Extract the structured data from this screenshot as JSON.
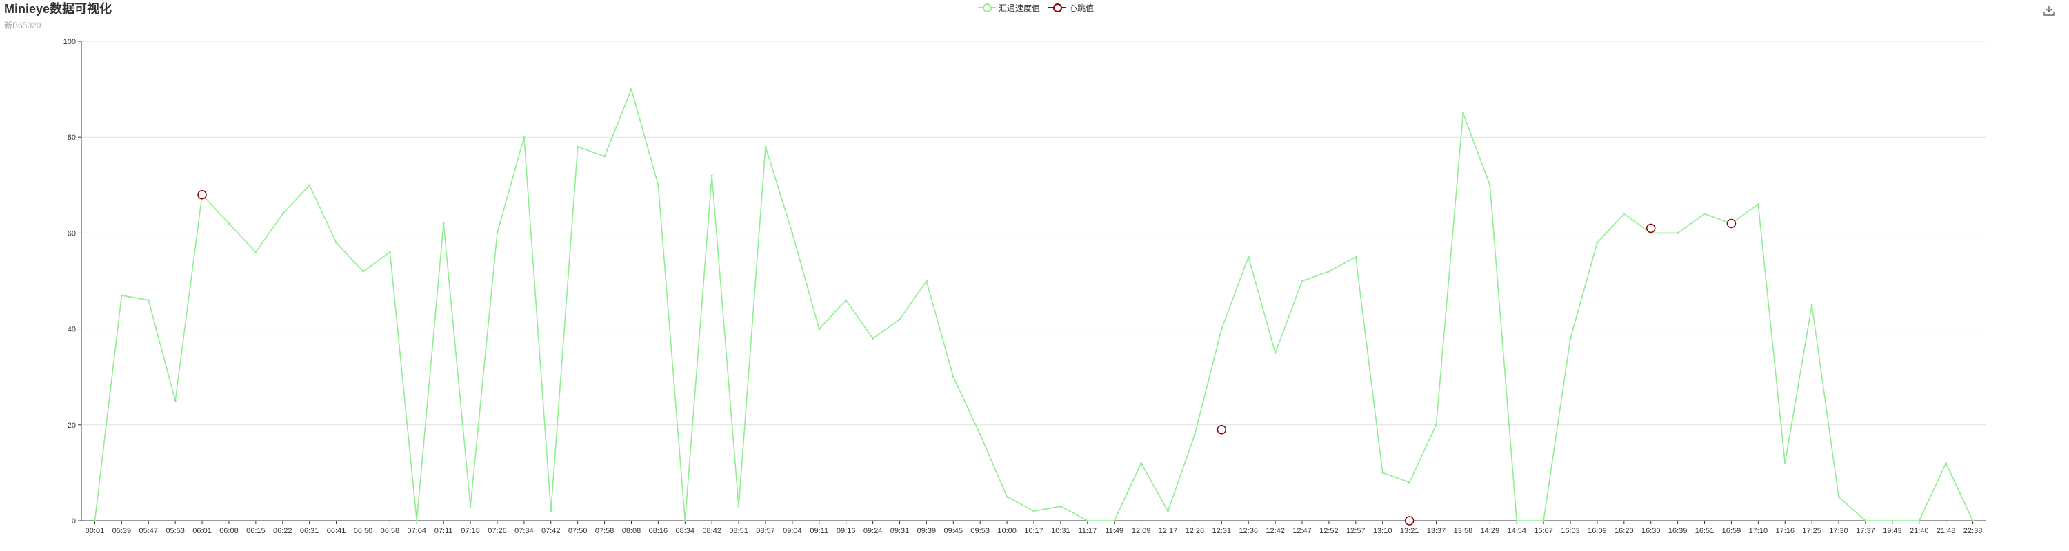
{
  "title": "Minieye数据可视化",
  "subtitle": "新B65020",
  "legend": {
    "items": [
      {
        "name": "汇通速度值",
        "color": "#90ee90",
        "icon": "circle-outline"
      },
      {
        "name": "心跳值",
        "color": "#8b0000",
        "icon": "circle-outline"
      }
    ],
    "placement": "top-center"
  },
  "toolbox": {
    "icon": "save-as-image-icon"
  },
  "chart_data": {
    "type": "line",
    "x": [
      "00:01",
      "05:39",
      "05:47",
      "05:53",
      "06:01",
      "06:08",
      "06:15",
      "06:22",
      "06:31",
      "06:41",
      "06:50",
      "06:58",
      "07:04",
      "07:11",
      "07:18",
      "07:26",
      "07:34",
      "07:42",
      "07:50",
      "07:58",
      "08:08",
      "08:16",
      "08:34",
      "08:42",
      "08:51",
      "08:57",
      "09:04",
      "09:11",
      "09:16",
      "09:24",
      "09:31",
      "09:39",
      "09:45",
      "09:53",
      "10:00",
      "10:17",
      "10:31",
      "11:17",
      "11:49",
      "12:09",
      "12:17",
      "12:26",
      "12:31",
      "12:36",
      "12:42",
      "12:47",
      "12:52",
      "12:57",
      "13:10",
      "13:21",
      "13:37",
      "13:58",
      "14:29",
      "14:54",
      "15:07",
      "16:03",
      "16:09",
      "16:20",
      "16:30",
      "16:39",
      "16:51",
      "16:59",
      "17:10",
      "17:16",
      "17:25",
      "17:30",
      "17:37",
      "19:43",
      "21:40",
      "21:48",
      "22:38"
    ],
    "ylim": [
      0,
      100
    ],
    "yticks": [
      "0",
      "20",
      "40",
      "60",
      "80",
      "100"
    ],
    "grid": true,
    "series": [
      {
        "name": "汇通速度值",
        "color": "#90ee90",
        "values": [
          0,
          47,
          46,
          25,
          68,
          62,
          56,
          64,
          70,
          58,
          52,
          56,
          0,
          62,
          3,
          60,
          80,
          2,
          78,
          76,
          90,
          70,
          0,
          72,
          3,
          78,
          60,
          40,
          46,
          38,
          42,
          50,
          30,
          18,
          5,
          2,
          3,
          0,
          0,
          12,
          2,
          18,
          40,
          55,
          35,
          50,
          52,
          55,
          10,
          8,
          20,
          85,
          70,
          0,
          0,
          38,
          58,
          64,
          60,
          60,
          64,
          62,
          66,
          12,
          45,
          5,
          0,
          0,
          0,
          12,
          0
        ]
      },
      {
        "name": "心跳值",
        "color": "#8b0000",
        "points": [
          {
            "x": "06:01",
            "y": 68
          },
          {
            "x": "12:31",
            "y": 19
          },
          {
            "x": "13:21",
            "y": 0
          },
          {
            "x": "16:30",
            "y": 61
          },
          {
            "x": "16:59",
            "y": 62
          }
        ]
      }
    ]
  }
}
